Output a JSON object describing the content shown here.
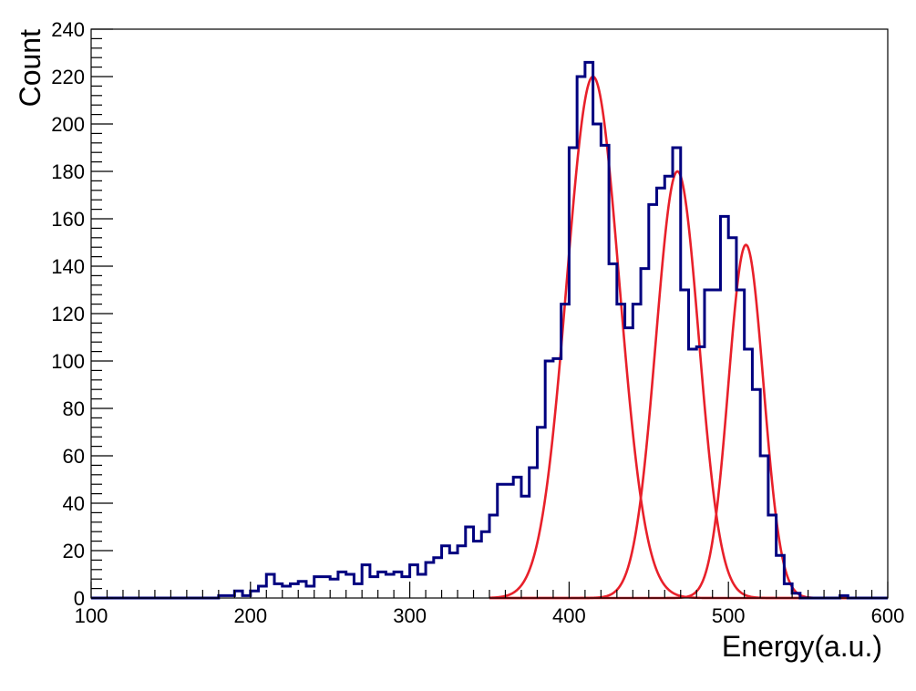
{
  "chart_data": {
    "type": "histogram",
    "xlabel": "Energy(a.u.)",
    "ylabel": "Count",
    "xlim": [
      100,
      600
    ],
    "ylim": [
      0,
      240
    ],
    "x_ticks": [
      100,
      200,
      300,
      400,
      500,
      600
    ],
    "y_ticks": [
      0,
      20,
      40,
      60,
      80,
      100,
      120,
      140,
      160,
      180,
      200,
      220,
      240
    ],
    "x_tick_labels": [
      "100",
      "200",
      "300",
      "400",
      "500",
      "600"
    ],
    "y_tick_labels": [
      "0",
      "20",
      "40",
      "60",
      "80",
      "100",
      "120",
      "140",
      "160",
      "180",
      "200",
      "220",
      "240"
    ],
    "grid": false,
    "histogram": {
      "color": "#00007f",
      "bin_width": 5,
      "x_start": 100,
      "counts": [
        0,
        0,
        0,
        0,
        0,
        0,
        0,
        0,
        0,
        0,
        0,
        0,
        0,
        0,
        0,
        0,
        1,
        1,
        3,
        1,
        3,
        5,
        10,
        6,
        5,
        6,
        7,
        5,
        9,
        9,
        8,
        11,
        10,
        6,
        14,
        9,
        11,
        10,
        11,
        9,
        14,
        10,
        15,
        17,
        22,
        19,
        22,
        30,
        24,
        28,
        35,
        48,
        48,
        51,
        43,
        55,
        72,
        100,
        101,
        124,
        190,
        220,
        226,
        200,
        191,
        141,
        124,
        114,
        124,
        139,
        166,
        173,
        178,
        190,
        130,
        105,
        106,
        130,
        130,
        161,
        152,
        130,
        105,
        88,
        60,
        35,
        18,
        6,
        2,
        0,
        0,
        0,
        0,
        0,
        1,
        0,
        0,
        0,
        0,
        0
      ]
    },
    "fits": [
      {
        "type": "gaussian",
        "color": "#e8202a",
        "amplitude": 220,
        "mean": 415,
        "sigma": 16.5,
        "x_range": [
          350,
          600
        ]
      },
      {
        "type": "gaussian",
        "color": "#e8202a",
        "amplitude": 180,
        "mean": 468,
        "sigma": 13.5,
        "x_range": [
          350,
          600
        ]
      },
      {
        "type": "gaussian",
        "color": "#e8202a",
        "amplitude": 149,
        "mean": 511,
        "sigma": 11,
        "x_range": [
          350,
          600
        ]
      }
    ]
  }
}
